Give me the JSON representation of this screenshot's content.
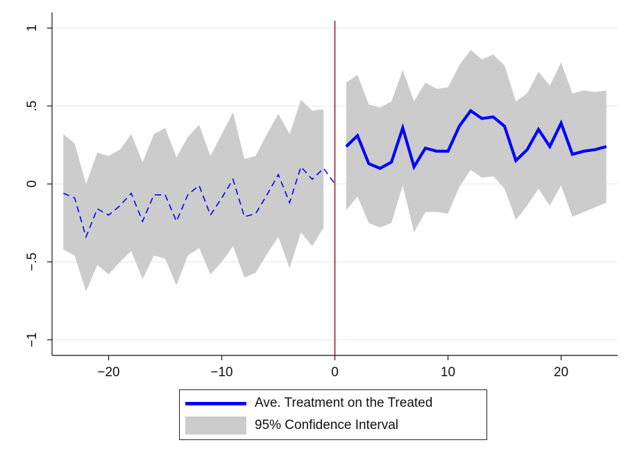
{
  "chart_data": {
    "type": "line",
    "title": "",
    "xlabel": "",
    "ylabel": "",
    "xlim": [
      -25,
      25
    ],
    "ylim": [
      -1.1,
      1.1
    ],
    "xticks": [
      -20,
      -10,
      0,
      10,
      20
    ],
    "xtick_labels": [
      "−20",
      "−10",
      "0",
      "10",
      "20"
    ],
    "yticks": [
      -1,
      -0.5,
      0,
      0.5,
      1
    ],
    "ytick_labels": [
      "−1",
      "−.5",
      "0",
      ".5",
      "1"
    ],
    "grid": true,
    "vline_x": 0,
    "legend_position": "bottom",
    "colors": {
      "line": "#0000ff",
      "band": "#cccccc",
      "vline": "#9b1c31",
      "grid": "#e6ecef"
    },
    "series": [
      {
        "name": "Ave. Treatment on the Treated",
        "segments": [
          {
            "style": "dashed",
            "x": [
              -24,
              -23,
              -22,
              -21,
              -20,
              -19,
              -18,
              -17,
              -16,
              -15,
              -14,
              -13,
              -12,
              -11,
              -10,
              -9,
              -8,
              -7,
              -6,
              -5,
              -4,
              -3,
              -2,
              -1,
              0
            ],
            "y": [
              -0.06,
              -0.09,
              -0.34,
              -0.16,
              -0.2,
              -0.14,
              -0.06,
              -0.24,
              -0.07,
              -0.07,
              -0.24,
              -0.07,
              -0.01,
              -0.2,
              -0.09,
              0.03,
              -0.21,
              -0.19,
              -0.07,
              0.06,
              -0.12,
              0.11,
              0.03,
              0.1,
              0.0
            ]
          },
          {
            "style": "solid",
            "x": [
              1,
              2,
              3,
              4,
              5,
              6,
              7,
              8,
              9,
              10,
              11,
              12,
              13,
              14,
              15,
              16,
              17,
              18,
              19,
              20,
              21,
              22,
              23,
              24
            ],
            "y": [
              0.24,
              0.31,
              0.13,
              0.1,
              0.14,
              0.36,
              0.11,
              0.23,
              0.21,
              0.21,
              0.37,
              0.47,
              0.42,
              0.43,
              0.37,
              0.15,
              0.22,
              0.35,
              0.24,
              0.39,
              0.19,
              0.21,
              0.22,
              0.24
            ]
          }
        ]
      },
      {
        "name": "95% Confidence Interval",
        "bands": [
          {
            "x": [
              -24,
              -23,
              -22,
              -21,
              -20,
              -19,
              -18,
              -17,
              -16,
              -15,
              -14,
              -13,
              -12,
              -11,
              -10,
              -9,
              -8,
              -7,
              -6,
              -5,
              -4,
              -3,
              -2,
              -1
            ],
            "lower": [
              -0.42,
              -0.46,
              -0.69,
              -0.52,
              -0.58,
              -0.5,
              -0.43,
              -0.61,
              -0.46,
              -0.48,
              -0.65,
              -0.46,
              -0.41,
              -0.58,
              -0.5,
              -0.4,
              -0.6,
              -0.57,
              -0.45,
              -0.34,
              -0.54,
              -0.31,
              -0.4,
              -0.28
            ],
            "upper": [
              0.32,
              0.26,
              0.0,
              0.2,
              0.18,
              0.22,
              0.32,
              0.14,
              0.32,
              0.36,
              0.17,
              0.3,
              0.38,
              0.18,
              0.32,
              0.46,
              0.16,
              0.18,
              0.32,
              0.45,
              0.32,
              0.54,
              0.47,
              0.48
            ]
          },
          {
            "x": [
              1,
              2,
              3,
              4,
              5,
              6,
              7,
              8,
              9,
              10,
              11,
              12,
              13,
              14,
              15,
              16,
              17,
              18,
              19,
              20,
              21,
              22,
              23,
              24
            ],
            "lower": [
              -0.17,
              -0.08,
              -0.25,
              -0.28,
              -0.25,
              -0.01,
              -0.31,
              -0.18,
              -0.18,
              -0.19,
              -0.02,
              0.09,
              0.04,
              0.05,
              -0.03,
              -0.23,
              -0.14,
              -0.03,
              -0.14,
              -0.01,
              -0.21,
              -0.18,
              -0.15,
              -0.12
            ],
            "upper": [
              0.65,
              0.7,
              0.51,
              0.49,
              0.53,
              0.73,
              0.53,
              0.65,
              0.61,
              0.62,
              0.76,
              0.86,
              0.8,
              0.83,
              0.76,
              0.53,
              0.58,
              0.72,
              0.63,
              0.78,
              0.58,
              0.6,
              0.59,
              0.6
            ]
          }
        ]
      }
    ]
  }
}
